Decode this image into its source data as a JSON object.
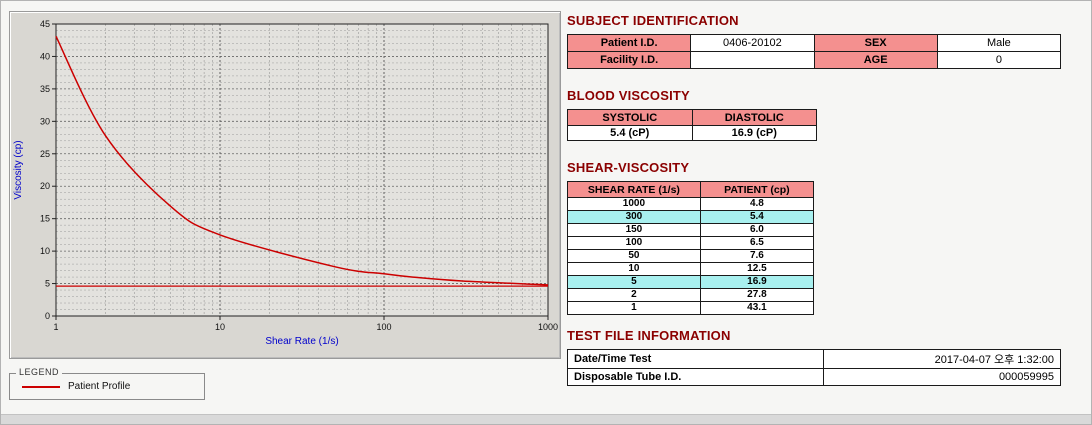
{
  "colors": {
    "section_title": "#8b0000",
    "table_header_bg": "#f4908f",
    "highlight_bg": "#a8f0ef",
    "curve": "#cc0000",
    "axis_label": "#0000cc",
    "chart_panel_bg": "#d9d7d2"
  },
  "chart_data": {
    "type": "line",
    "title": "",
    "xlabel": "Shear Rate (1/s)",
    "ylabel": "Viscosity (cp)",
    "xscale": "log",
    "xlim": [
      1,
      1000
    ],
    "ylim": [
      0,
      45
    ],
    "yticks": [
      0,
      5,
      10,
      15,
      20,
      25,
      30,
      35,
      40,
      45
    ],
    "xticks": [
      1,
      10,
      100,
      1000
    ],
    "grid": true,
    "x": [
      1,
      2,
      5,
      10,
      50,
      100,
      150,
      300,
      1000
    ],
    "series": [
      {
        "name": "Patient Profile",
        "color": "#cc0000",
        "values": [
          43.1,
          27.8,
          16.9,
          12.5,
          7.6,
          6.5,
          6.0,
          5.4,
          4.8
        ]
      }
    ],
    "reference_lines": [
      {
        "y": 4.6,
        "color": "#cc0000"
      }
    ],
    "legend_position": "below-left"
  },
  "legend": {
    "title": "LEGEND",
    "items": [
      {
        "label": "Patient Profile",
        "color": "#cc0000"
      }
    ]
  },
  "subject_identification": {
    "title": "SUBJECT IDENTIFICATION",
    "rows": [
      {
        "label1": "Patient I.D.",
        "value1": "0406-20102",
        "label2": "SEX",
        "value2": "Male"
      },
      {
        "label1": "Facility I.D.",
        "value1": "",
        "label2": "AGE",
        "value2": "0"
      }
    ]
  },
  "blood_viscosity": {
    "title": "BLOOD VISCOSITY",
    "headers": [
      "SYSTOLIC",
      "DIASTOLIC"
    ],
    "values": [
      "5.4 (cP)",
      "16.9 (cP)"
    ]
  },
  "shear_viscosity": {
    "title": "SHEAR-VISCOSITY",
    "headers": [
      "SHEAR RATE (1/s)",
      "PATIENT (cp)"
    ],
    "rows": [
      {
        "rate": "1000",
        "value": "4.8",
        "highlight": false
      },
      {
        "rate": "300",
        "value": "5.4",
        "highlight": true
      },
      {
        "rate": "150",
        "value": "6.0",
        "highlight": false
      },
      {
        "rate": "100",
        "value": "6.5",
        "highlight": false
      },
      {
        "rate": "50",
        "value": "7.6",
        "highlight": false
      },
      {
        "rate": "10",
        "value": "12.5",
        "highlight": false
      },
      {
        "rate": "5",
        "value": "16.9",
        "highlight": true
      },
      {
        "rate": "2",
        "value": "27.8",
        "highlight": false
      },
      {
        "rate": "1",
        "value": "43.1",
        "highlight": false
      }
    ]
  },
  "test_file_information": {
    "title": "TEST FILE INFORMATION",
    "rows": [
      {
        "label": "Date/Time Test",
        "value": "2017-04-07  오후 1:32:00"
      },
      {
        "label": "Disposable Tube I.D.",
        "value": "000059995"
      }
    ]
  }
}
